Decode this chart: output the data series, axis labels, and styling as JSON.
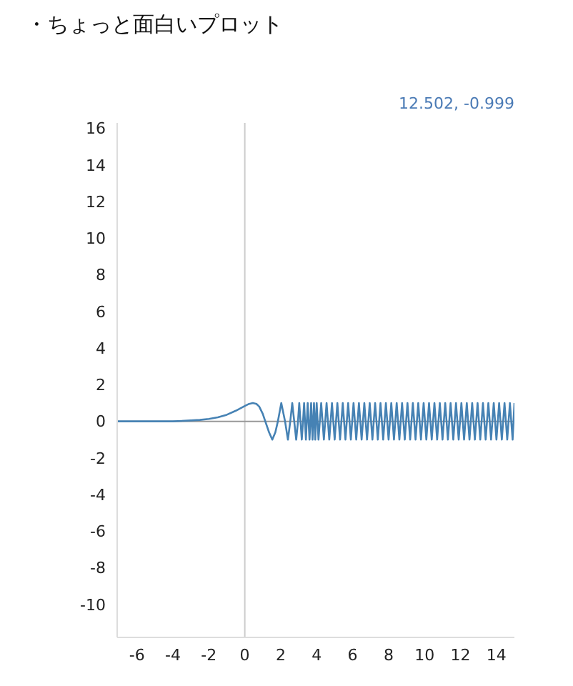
{
  "chart_data": {
    "type": "line",
    "title": "・ちょっと面白いプロット",
    "annotations": [
      "12.502, -0.999"
    ],
    "x": [
      -7.1,
      -6,
      -5,
      -4,
      -3,
      -2.5,
      -2,
      -1.5,
      -1,
      -0.5,
      0,
      0.2,
      0.45,
      0.65,
      0.8,
      1.0,
      1.14,
      1.35,
      1.53,
      1.7,
      1.84,
      2.03,
      2.24,
      2.4,
      2.53,
      2.64,
      2.75,
      2.86,
      2.96,
      3.03,
      3.1,
      3.17,
      3.24,
      3.3,
      3.35,
      3.4,
      3.45,
      3.5,
      3.55,
      3.6,
      3.65,
      3.69,
      3.73,
      3.77,
      3.81,
      3.85,
      3.89,
      3.92,
      3.96,
      4.0,
      4.1,
      4.25,
      4.4,
      4.55,
      4.7,
      4.85,
      5.0,
      5.15,
      5.3,
      5.45,
      5.6,
      5.75,
      5.9,
      6.05,
      6.2,
      6.35,
      6.5,
      6.65,
      6.8,
      6.95,
      7.1,
      7.25,
      7.4,
      7.55,
      7.7,
      7.85,
      8.0,
      8.15,
      8.3,
      8.45,
      8.6,
      8.75,
      8.9,
      9.05,
      9.2,
      9.35,
      9.5,
      9.65,
      9.8,
      9.95,
      10.1,
      10.25,
      10.4,
      10.55,
      10.7,
      10.85,
      11.0,
      11.15,
      11.3,
      11.45,
      11.6,
      11.75,
      11.9,
      12.05,
      12.2,
      12.35,
      12.5,
      12.65,
      12.8,
      12.95,
      13.1,
      13.25,
      13.4,
      13.55,
      13.7,
      13.85,
      14.0,
      14.15,
      14.3,
      14.45,
      14.6,
      14.75,
      14.9,
      15.0
    ],
    "values": [
      0,
      0,
      0,
      0,
      0.05,
      0.08,
      0.13,
      0.22,
      0.36,
      0.58,
      0.84,
      0.94,
      1,
      0.95,
      0.81,
      0.41,
      0,
      -0.6,
      -1,
      -0.6,
      0,
      1,
      0,
      -1,
      0,
      1,
      0,
      -1,
      0,
      1,
      0,
      -1,
      0,
      1,
      0,
      -1,
      0,
      1,
      0,
      -1,
      0,
      1,
      0,
      -1,
      0,
      1,
      0,
      -1,
      0,
      1,
      -1,
      1,
      -1,
      1,
      -1,
      1,
      -1,
      1,
      -1,
      1,
      -1,
      1,
      -1,
      1,
      -1,
      1,
      -1,
      1,
      -1,
      1,
      -1,
      1,
      -1,
      1,
      -1,
      1,
      -1,
      1,
      -1,
      1,
      -1,
      1,
      -1,
      1,
      -1,
      1,
      -1,
      1,
      -1,
      1,
      -1,
      1,
      -1,
      1,
      -1,
      1,
      -1,
      1,
      -1,
      1,
      -1,
      1,
      -1,
      1,
      -1,
      1,
      -1,
      1,
      -1,
      1,
      -1,
      1,
      -1,
      1,
      -1,
      1,
      -1,
      1,
      -1,
      1,
      -1,
      1,
      -1,
      1
    ],
    "color": "#4682b4",
    "marker": "none",
    "xlim": [
      -7.1,
      15
    ],
    "xticks": [
      -6,
      -4,
      -2,
      0,
      2,
      4,
      6,
      8,
      10,
      12,
      14
    ],
    "ylim": [
      -11.8,
      16.3
    ],
    "yticks": [
      -10,
      -8,
      -6,
      -4,
      -2,
      0,
      2,
      4,
      6,
      8,
      10,
      12,
      14,
      16
    ],
    "ref_lines": [
      {
        "axis": "x",
        "value": 0,
        "color": "#cccccc"
      },
      {
        "axis": "y",
        "value": 0,
        "color": "#999999"
      }
    ]
  }
}
